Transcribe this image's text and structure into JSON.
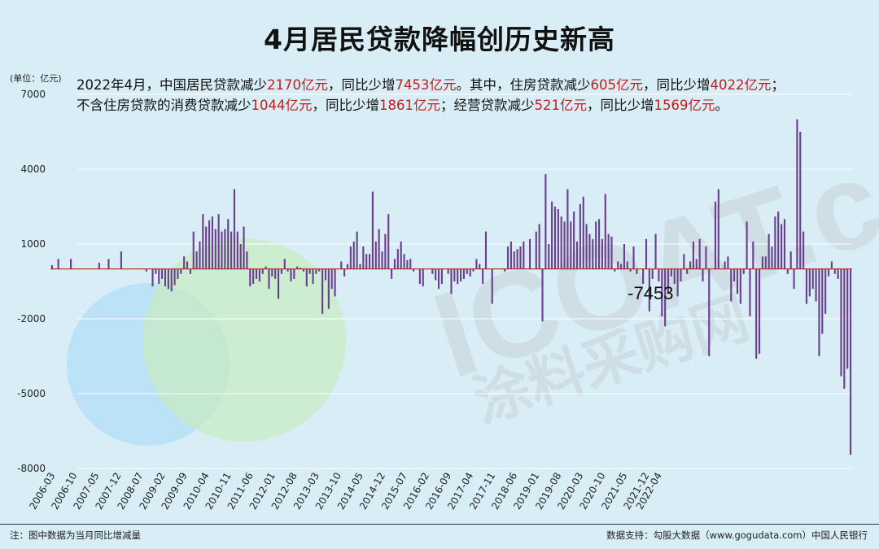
{
  "page": {
    "title": "4月居民贷款降幅创历史新高",
    "unit_label": "(单位：亿元)",
    "subtitle_parts": [
      {
        "text": "2022年4月，中国居民贷款减少",
        "red": false
      },
      {
        "text": "2170亿元",
        "red": true
      },
      {
        "text": "，同比少增",
        "red": false
      },
      {
        "text": "7453亿元",
        "red": true
      },
      {
        "text": "。其中，住房贷款减少",
        "red": false
      },
      {
        "text": "605亿元",
        "red": true
      },
      {
        "text": "，同比少增",
        "red": false
      },
      {
        "text": "4022亿元",
        "red": true
      },
      {
        "text": "；",
        "red": false
      },
      {
        "text": "BR",
        "red": false
      },
      {
        "text": "不含住房贷款的消费贷款减少",
        "red": false
      },
      {
        "text": "1044亿元",
        "red": true
      },
      {
        "text": "，同比少增",
        "red": false
      },
      {
        "text": "1861亿元",
        "red": true
      },
      {
        "text": "；经营贷款减少",
        "red": false
      },
      {
        "text": "521亿元",
        "red": true
      },
      {
        "text": "，同比少增",
        "red": false
      },
      {
        "text": "1569亿元",
        "red": true
      },
      {
        "text": "。",
        "red": false
      }
    ],
    "footnote": "注：图中数据为当月同比增减量",
    "source": "数据支持：勾股大数据（www.gogudata.com）中国人民银行",
    "watermark_main": "ICOAT.cc",
    "watermark_sub": "涂料采购网"
  },
  "colors": {
    "background": "#d8edf6",
    "bar": "#6a3f8e",
    "zero_line": "#c0201c",
    "grid": "#ffffff",
    "highlight_red": "#c0201c"
  },
  "chart_data": {
    "type": "bar",
    "title": "4月居民贷款降幅创历史新高",
    "ylabel": "(单位：亿元)",
    "ylim": [
      -8000,
      7000
    ],
    "yticks": [
      7000,
      4000,
      1000,
      -2000,
      -5000,
      -8000
    ],
    "xtick_labels": [
      "2006-03",
      "2006-10",
      "2007-05",
      "2007-12",
      "2008-07",
      "2009-02",
      "2009-09",
      "2010-04",
      "2010-11",
      "2011-06",
      "2012-01",
      "2012-08",
      "2013-03",
      "2013-10",
      "2014-05",
      "2014-12",
      "2015-07",
      "2016-02",
      "2016-09",
      "2017-04",
      "2017-11",
      "2018-06",
      "2019-01",
      "2019-08",
      "2020-03",
      "2020-10",
      "2021-05",
      "2021-12",
      "2022-04"
    ],
    "start": "2006-03",
    "end": "2022-04",
    "annotation": {
      "x": "2022-04",
      "label": "-7453"
    },
    "values": [
      150,
      0,
      400,
      0,
      0,
      0,
      400,
      0,
      0,
      0,
      0,
      0,
      0,
      0,
      0,
      250,
      0,
      0,
      400,
      0,
      0,
      0,
      700,
      0,
      0,
      0,
      0,
      0,
      0,
      0,
      -100,
      0,
      -700,
      -200,
      -600,
      -400,
      -700,
      -800,
      -900,
      -650,
      -400,
      -200,
      500,
      300,
      -200,
      1500,
      700,
      1100,
      2200,
      1700,
      1950,
      2100,
      1600,
      2200,
      1500,
      1600,
      2000,
      1500,
      3200,
      1500,
      1000,
      1700,
      700,
      -700,
      -600,
      -400,
      -500,
      -200,
      100,
      -800,
      -300,
      -400,
      -1200,
      -200,
      400,
      -100,
      -500,
      -400,
      100,
      50,
      -100,
      -700,
      -200,
      -600,
      -200,
      -100,
      -1800,
      -450,
      -1600,
      -800,
      -1100,
      0,
      300,
      -300,
      200,
      900,
      1100,
      1500,
      200,
      900,
      600,
      600,
      3100,
      1100,
      1600,
      700,
      1400,
      2200,
      -400,
      400,
      800,
      1100,
      600,
      350,
      400,
      -100,
      0,
      -600,
      -700,
      0,
      0,
      -200,
      -450,
      -800,
      -600,
      0,
      -200,
      -1000,
      -500,
      -600,
      -500,
      -400,
      -200,
      -300,
      -100,
      400,
      200,
      -600,
      1500,
      0,
      -1400,
      0,
      0,
      0,
      -100,
      900,
      1100,
      700,
      800,
      900,
      1100,
      0,
      1200,
      0,
      1500,
      1800,
      -2100,
      3800,
      1000,
      2700,
      2500,
      2400,
      2100,
      1900,
      3200,
      1900,
      2300,
      1100,
      2600,
      2900,
      1800,
      1400,
      1200,
      1900,
      2000,
      1200,
      3000,
      1400,
      1300,
      -100,
      300,
      200,
      1000,
      300,
      -100,
      900,
      -200,
      0,
      -600,
      1200,
      -1700,
      -400,
      1400,
      -500,
      -1900,
      -2300,
      -1000,
      -300,
      -600,
      -1100,
      -500,
      600,
      -200,
      300,
      1100,
      400,
      1200,
      -500,
      900,
      -3500,
      0,
      2700,
      3200,
      0,
      300,
      500,
      -1300,
      -500,
      -1000,
      -1400,
      -200,
      1900,
      -1900,
      1100,
      -3600,
      -3400,
      500,
      500,
      1400,
      900,
      2100,
      2300,
      1800,
      2000,
      -200,
      700,
      -800,
      6000,
      5500,
      1500,
      -1400,
      -1100,
      -800,
      -1300,
      -3500,
      -2600,
      -1800,
      -300,
      300,
      -200,
      -400,
      -4300,
      -4800,
      -4000,
      -7453
    ]
  }
}
